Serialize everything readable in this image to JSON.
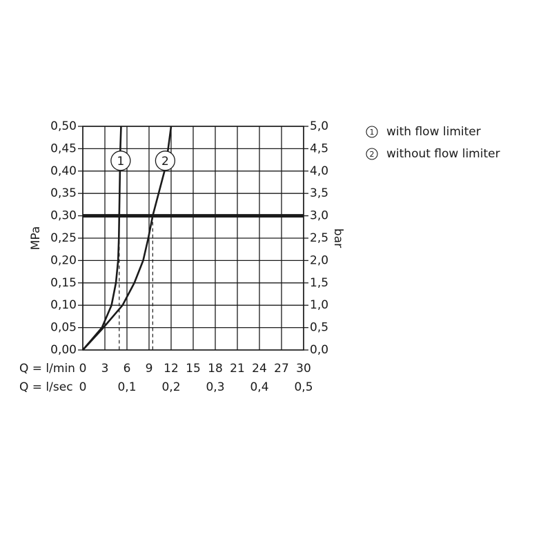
{
  "chart_data": {
    "type": "line",
    "xlabel": "Q = l/min",
    "x2label": "Q = l/sec",
    "ylabel": "MPa",
    "y2label": "bar",
    "xlim": [
      0,
      30
    ],
    "xticks": [
      0,
      3,
      6,
      9,
      12,
      15,
      18,
      21,
      24,
      27,
      30
    ],
    "x2lim": [
      0,
      0.5
    ],
    "x2ticks": [
      0,
      {
        "value": 0.1,
        "label": "0,1"
      },
      {
        "value": 0.2,
        "label": "0,2"
      },
      {
        "value": 0.3,
        "label": "0,3"
      },
      {
        "value": 0.4,
        "label": "0,4"
      },
      {
        "value": 0.5,
        "label": "0,5"
      }
    ],
    "ylim": [
      0,
      0.5
    ],
    "yticks": [
      {
        "value": 0,
        "label": "0,00"
      },
      {
        "value": 0.05,
        "label": "0,05"
      },
      {
        "value": 0.1,
        "label": "0,10"
      },
      {
        "value": 0.15,
        "label": "0,15"
      },
      {
        "value": 0.2,
        "label": "0,20"
      },
      {
        "value": 0.25,
        "label": "0,25"
      },
      {
        "value": 0.3,
        "label": "0,30"
      },
      {
        "value": 0.35,
        "label": "0,35"
      },
      {
        "value": 0.4,
        "label": "0,40"
      },
      {
        "value": 0.45,
        "label": "0,45"
      },
      {
        "value": 0.5,
        "label": "0,50"
      }
    ],
    "y2lim": [
      0,
      5
    ],
    "y2ticks": [
      {
        "value": 0,
        "label": "0,0"
      },
      {
        "value": 0.5,
        "label": "0,5"
      },
      {
        "value": 1,
        "label": "1,0"
      },
      {
        "value": 1.5,
        "label": "1,5"
      },
      {
        "value": 2,
        "label": "2,0"
      },
      {
        "value": 2.5,
        "label": "2,5"
      },
      {
        "value": 3,
        "label": "3,0"
      },
      {
        "value": 3.5,
        "label": "3,5"
      },
      {
        "value": 4,
        "label": "4,0"
      },
      {
        "value": 4.5,
        "label": "4,5"
      },
      {
        "value": 5,
        "label": "5,0"
      }
    ],
    "grid": true,
    "reference_y": 0.3,
    "series": [
      {
        "name": "with flow limiter",
        "marker_label": "1",
        "color": "#1a1a1a",
        "x": [
          0,
          2.6,
          3.9,
          4.5,
          4.8,
          4.9,
          4.95,
          5.0,
          5.05,
          5.1,
          5.2
        ],
        "values": [
          0,
          0.05,
          0.1,
          0.15,
          0.2,
          0.25,
          0.3,
          0.35,
          0.4,
          0.45,
          0.5
        ]
      },
      {
        "name": "without flow limiter",
        "marker_label": "2",
        "color": "#1a1a1a",
        "x": [
          0,
          2.8,
          5.4,
          7.0,
          8.2,
          8.9,
          9.5,
          10.3,
          11.1,
          11.6,
          12.0
        ],
        "values": [
          0,
          0.05,
          0.1,
          0.15,
          0.2,
          0.25,
          0.3,
          0.35,
          0.4,
          0.45,
          0.5
        ]
      }
    ]
  }
}
